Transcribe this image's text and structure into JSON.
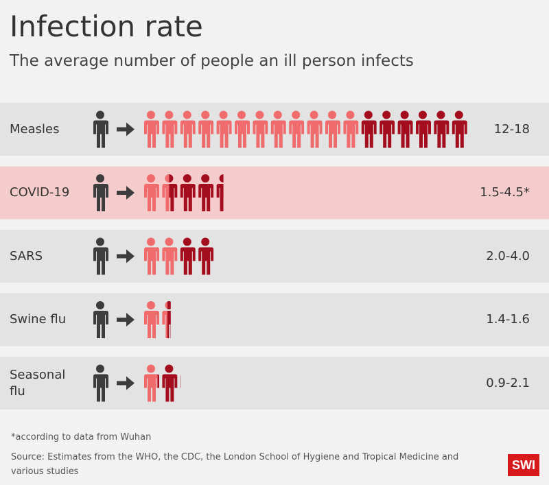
{
  "chart_data": {
    "type": "pictogram",
    "title": "Infection rate",
    "subtitle": "The average number of people an ill person infects",
    "categories": [
      "Measles",
      "COVID-19",
      "SARS",
      "Swine flu",
      "Seasonal flu"
    ],
    "low": [
      12,
      1.5,
      2.0,
      1.4,
      0.9
    ],
    "high": [
      18,
      4.5,
      4.0,
      1.6,
      2.1
    ],
    "value_labels": [
      "12-18",
      "1.5-4.5*",
      "2.0-4.0",
      "1.4-1.6",
      "0.9-2.1"
    ],
    "low_color": "#f06b6b",
    "high_color": "#a30d1d",
    "source_color": "#3d3d3d",
    "row_colors": [
      "#e3e3e3",
      "#f4cccc",
      "#e3e3e3",
      "#e3e3e3",
      "#e3e3e3"
    ],
    "note": "*according to data from Wuhan",
    "source": "Source: Estimates from the WHO, the CDC, the London School of Hygiene and Tropical Medicine and various studies",
    "logo": "SWI"
  }
}
